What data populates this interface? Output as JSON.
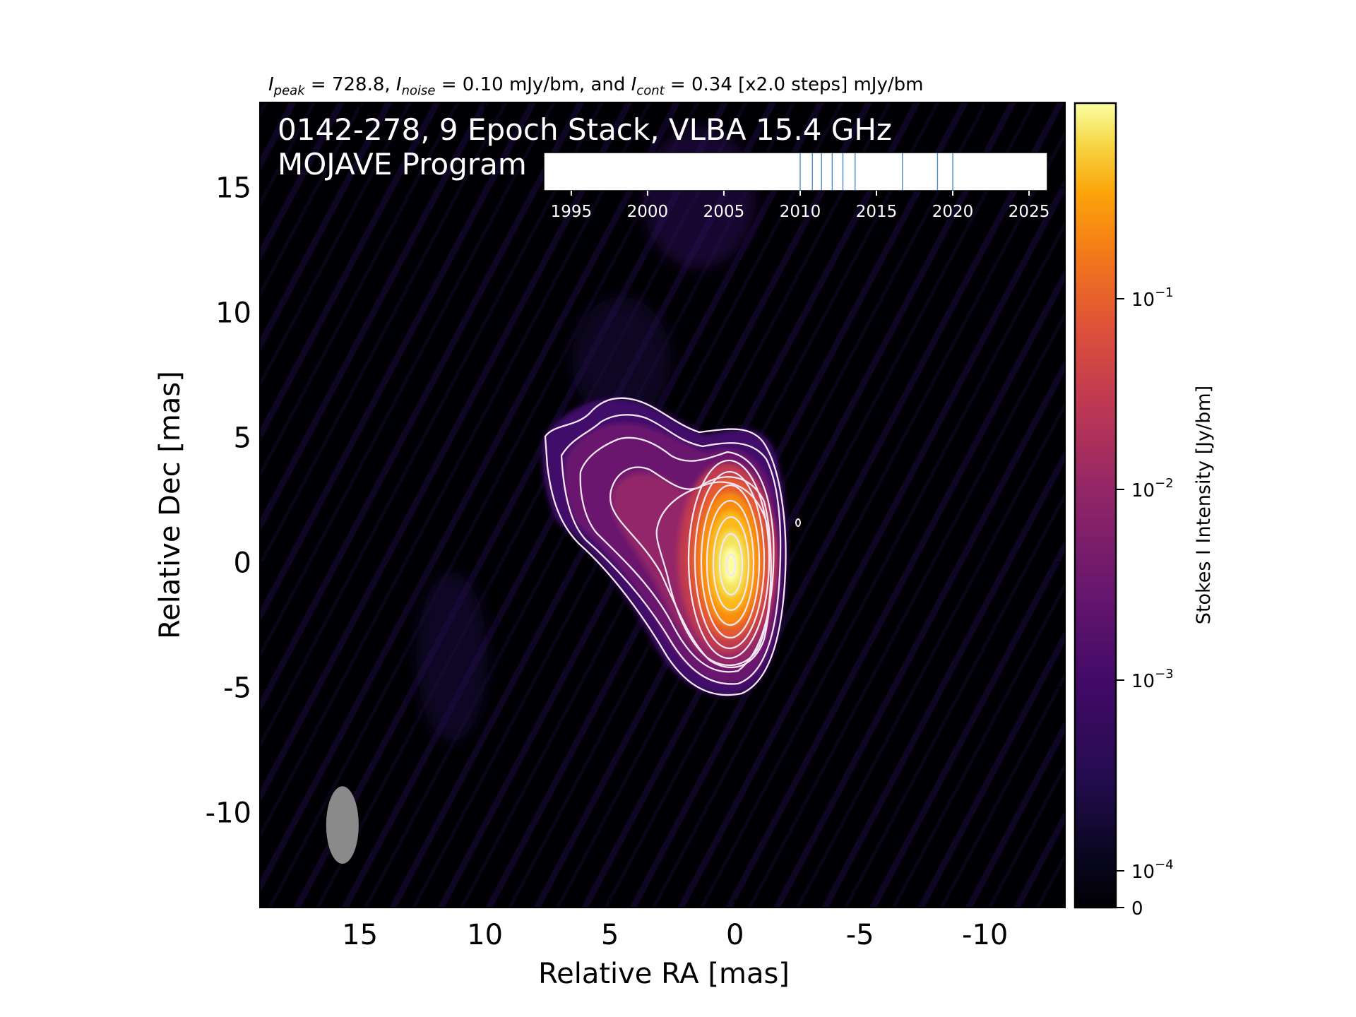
{
  "chart_data": {
    "type": "heatmap",
    "header": {
      "peak_sym": "I",
      "peak_sub": "peak",
      "peak_val": " = 728.8, ",
      "noise_sym": "I",
      "noise_sub": "noise",
      "noise_val": " = 0.10 mJy/bm, and ",
      "cont_sym": "I",
      "cont_sub": "cont",
      "cont_val": " = 0.34 [x2.0 steps] mJy/bm"
    },
    "title_line1": "0142-278, 9 Epoch Stack, VLBA 15.4 GHz",
    "title_line2": "MOJAVE Program",
    "xlabel": "Relative RA [mas]",
    "ylabel": "Relative Dec [mas]",
    "xlim": [
      19,
      -13.2
    ],
    "ylim": [
      -13.8,
      18.4
    ],
    "xticks": [
      15,
      10,
      5,
      0,
      -5,
      -10
    ],
    "xtick_labels": [
      "15",
      "10",
      "5",
      "0",
      "-5",
      "-10"
    ],
    "yticks": [
      15,
      10,
      5,
      0,
      -5,
      -10
    ],
    "ytick_labels": [
      "15",
      "10",
      "5",
      "0",
      "-5",
      "-10"
    ],
    "colormap": "inferno",
    "colorbar": {
      "label": "Stokes I Intensity [Jy/bm]",
      "ticks": [
        {
          "base": "10",
          "exp": "−1",
          "value": 0.1
        },
        {
          "base": "10",
          "exp": "−2",
          "value": 0.01
        },
        {
          "base": "10",
          "exp": "−3",
          "value": 0.001
        },
        {
          "base": "10",
          "exp": "−4",
          "value": 0.0001
        },
        {
          "label": "0",
          "value": 0
        }
      ]
    },
    "peak_position": [
      0,
      0
    ],
    "beam": {
      "ra": 15.7,
      "dec": -10.5,
      "major": 3.1,
      "minor": 1.3,
      "pa_deg": 0
    },
    "contour_levels_mJy": [
      0.34,
      0.68,
      1.36,
      2.72,
      5.44,
      10.88,
      21.76,
      43.52,
      87.04,
      174.08,
      348.16,
      696.32
    ],
    "epoch_timeline": {
      "xlim": [
        1993.2,
        2026.2
      ],
      "ticks": [
        "1995",
        "2000",
        "2005",
        "2010",
        "2015",
        "2020",
        "2025"
      ],
      "tick_values": [
        1995,
        2000,
        2005,
        2010,
        2015,
        2020,
        2025
      ],
      "epochs": [
        2010.0,
        2010.8,
        2011.4,
        2012.1,
        2012.8,
        2013.6,
        2016.7,
        2019.0,
        2020.0
      ],
      "epoch_color": "#4c8cc4"
    }
  }
}
